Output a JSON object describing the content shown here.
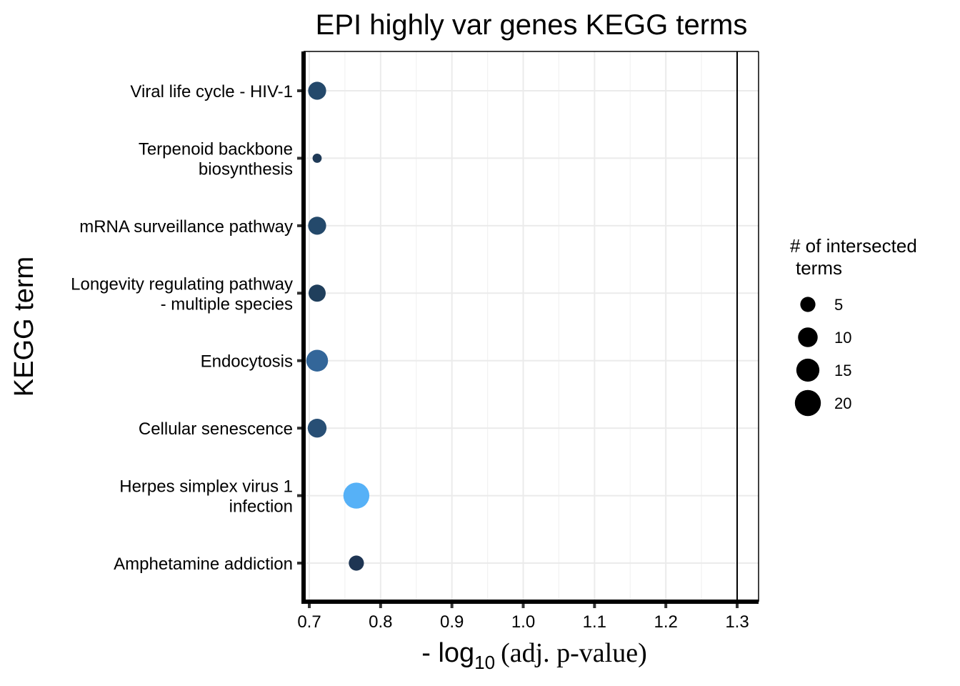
{
  "chart_data": {
    "type": "scatter",
    "title": "EPI highly var genes KEGG terms",
    "xlabel_prefix": "- log",
    "xlabel_sub": "10",
    "xlabel_suffix": "(adj. p-value)",
    "ylabel": "KEGG term",
    "xlim": [
      0.7,
      1.3
    ],
    "xticks": [
      "0.7",
      "0.8",
      "0.9",
      "1.0",
      "1.1",
      "1.2",
      "1.3"
    ],
    "threshold_line": 1.3,
    "grid": true,
    "points": [
      {
        "term": [
          "Viral life cycle - HIV-1"
        ],
        "x": 0.711,
        "size": 8,
        "color": "#24496b"
      },
      {
        "term": [
          "Terpenoid backbone",
          "biosynthesis"
        ],
        "x": 0.711,
        "size": 1,
        "color": "#1f3a57"
      },
      {
        "term": [
          "mRNA surveillance pathway"
        ],
        "x": 0.711,
        "size": 8,
        "color": "#24496b"
      },
      {
        "term": [
          "Longevity regulating pathway",
          "- multiple species"
        ],
        "x": 0.711,
        "size": 7,
        "color": "#203f5c"
      },
      {
        "term": [
          "Endocytosis"
        ],
        "x": 0.711,
        "size": 13,
        "color": "#336699"
      },
      {
        "term": [
          "Cellular senescence"
        ],
        "x": 0.711,
        "size": 9,
        "color": "#284f75"
      },
      {
        "term": [
          "Herpes simplex virus 1",
          "infection"
        ],
        "x": 0.766,
        "size": 20,
        "color": "#56b1f7"
      },
      {
        "term": [
          "Amphetamine addiction"
        ],
        "x": 0.766,
        "size": 5,
        "color": "#1e3553"
      }
    ],
    "legend": {
      "title": [
        "# of intersected",
        "terms"
      ],
      "sizes": [
        5,
        10,
        15,
        20
      ],
      "labels": [
        "5",
        "10",
        "15",
        "20"
      ],
      "position": "right"
    }
  }
}
